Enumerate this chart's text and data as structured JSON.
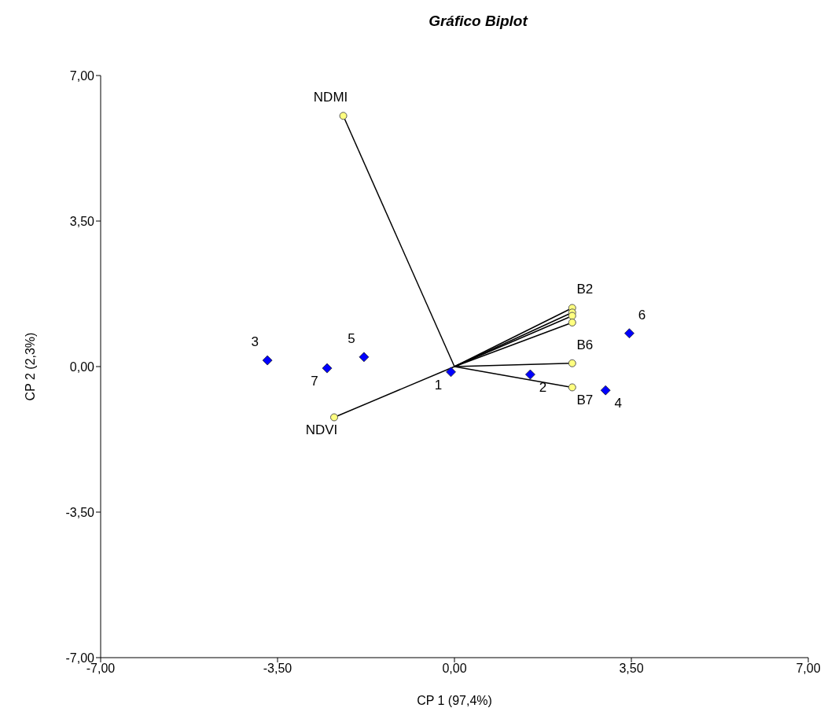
{
  "chart_data": {
    "type": "scatter",
    "title": "Gráfico Biplot",
    "xlabel": "CP 1 (97,4%)",
    "ylabel": "CP 2 (2,3%)",
    "xlim": [
      -7,
      7
    ],
    "ylim": [
      -7,
      7
    ],
    "xticks": [
      {
        "value": -7,
        "label": "-7,00"
      },
      {
        "value": -3.5,
        "label": "-3,50"
      },
      {
        "value": 0,
        "label": "0,00"
      },
      {
        "value": 3.5,
        "label": "3,50"
      },
      {
        "value": 7,
        "label": "7,00"
      }
    ],
    "yticks": [
      {
        "value": -7,
        "label": "-7,00"
      },
      {
        "value": -3.5,
        "label": "-3,50"
      },
      {
        "value": 0,
        "label": "0,00"
      },
      {
        "value": 3.5,
        "label": "3,50"
      },
      {
        "value": 7,
        "label": "7,00"
      }
    ],
    "grid": false,
    "series": [
      {
        "type": "line",
        "color": "#000000",
        "marker": "none",
        "x": [
          0,
          -2.2
        ],
        "values": [
          0,
          6.03
        ]
      },
      {
        "type": "line",
        "color": "#000000",
        "marker": "none",
        "x": [
          0,
          -2.38
        ],
        "values": [
          0,
          -1.22
        ]
      },
      {
        "type": "line",
        "color": "#000000",
        "marker": "none",
        "x": [
          0,
          2.33
        ],
        "values": [
          0,
          1.41
        ]
      },
      {
        "type": "line",
        "color": "#000000",
        "marker": "none",
        "x": [
          0,
          2.33
        ],
        "values": [
          0,
          1.3
        ]
      },
      {
        "type": "line",
        "color": "#000000",
        "marker": "none",
        "x": [
          0,
          2.33
        ],
        "values": [
          0,
          1.22
        ]
      },
      {
        "type": "line",
        "color": "#000000",
        "marker": "none",
        "x": [
          0,
          2.33
        ],
        "values": [
          0,
          1.06
        ]
      },
      {
        "type": "line",
        "color": "#000000",
        "marker": "none",
        "x": [
          0,
          2.33
        ],
        "values": [
          0,
          0.08
        ]
      },
      {
        "type": "line",
        "color": "#000000",
        "marker": "none",
        "x": [
          0,
          2.33
        ],
        "values": [
          0,
          -0.5
        ]
      },
      {
        "color": "#ffff80",
        "marker": "circle",
        "x": [
          -2.2,
          -2.38,
          2.33,
          2.33,
          2.33,
          2.33,
          2.33,
          2.33
        ],
        "values": [
          6.03,
          -1.22,
          1.41,
          1.3,
          1.22,
          1.06,
          0.08,
          -0.5
        ]
      },
      {
        "color": "#0000ff",
        "marker": "diamond",
        "x": [
          -0.07,
          1.5,
          -3.7,
          2.99,
          -1.79,
          3.46,
          -2.52
        ],
        "values": [
          -0.13,
          -0.19,
          0.15,
          -0.57,
          0.23,
          0.8,
          -0.04
        ]
      }
    ],
    "annotations": [
      {
        "text": "1",
        "x": -0.07,
        "y": -0.13
      },
      {
        "text": "2",
        "x": 1.5,
        "y": -0.19
      },
      {
        "text": "3",
        "x": -3.7,
        "y": 0.15
      },
      {
        "text": "4",
        "x": 2.99,
        "y": -0.57
      },
      {
        "text": "5",
        "x": -1.79,
        "y": 0.23
      },
      {
        "text": "6",
        "x": 3.46,
        "y": 0.8
      },
      {
        "text": "7",
        "x": -2.52,
        "y": -0.04
      },
      {
        "text": "NDMI",
        "x": -2.2,
        "y": 6.03
      },
      {
        "text": "NDVI",
        "x": -2.38,
        "y": -1.22
      },
      {
        "text": "B2",
        "x": 2.33,
        "y": 1.41
      },
      {
        "text": "B6",
        "x": 2.33,
        "y": 0.08
      },
      {
        "text": "B7",
        "x": 2.33,
        "y": -0.5
      }
    ]
  }
}
